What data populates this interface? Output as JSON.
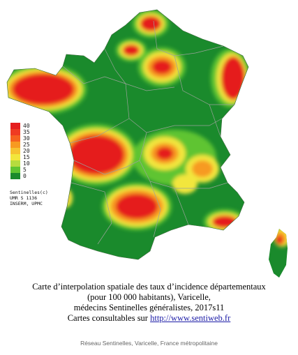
{
  "legend": {
    "levels": [
      "40",
      "35",
      "30",
      "25",
      "20",
      "15",
      "10",
      "5",
      "0"
    ],
    "colors": [
      "#e51e1e",
      "#ef3b22",
      "#f5621f",
      "#f79a21",
      "#f6c330",
      "#f2e63c",
      "#b6dc3e",
      "#5fc431",
      "#1a8a2c"
    ]
  },
  "credit": {
    "line1": "Sentinelles(c)",
    "line2": "UMR S 1136",
    "line3": "INSERM, UPMC"
  },
  "caption": {
    "line1": "Carte d’interpolation spatiale des taux d’incidence départementaux",
    "line2": "(pour 100 000 habitants), Varicelle,",
    "line3": "médecins Sentinelles généralistes, 2017s11",
    "line4_prefix": "Cartes consultables sur ",
    "link": "http://www.sentiweb.fr"
  },
  "footer": "Réseau Sentinelles, Varicelle, France métropolitaine",
  "colors": {
    "base": "#1a8a2c",
    "low": "#5fc431",
    "mid": "#f2e63c",
    "high": "#f79a21",
    "top": "#e51e1e",
    "border": "#9aa39a"
  }
}
